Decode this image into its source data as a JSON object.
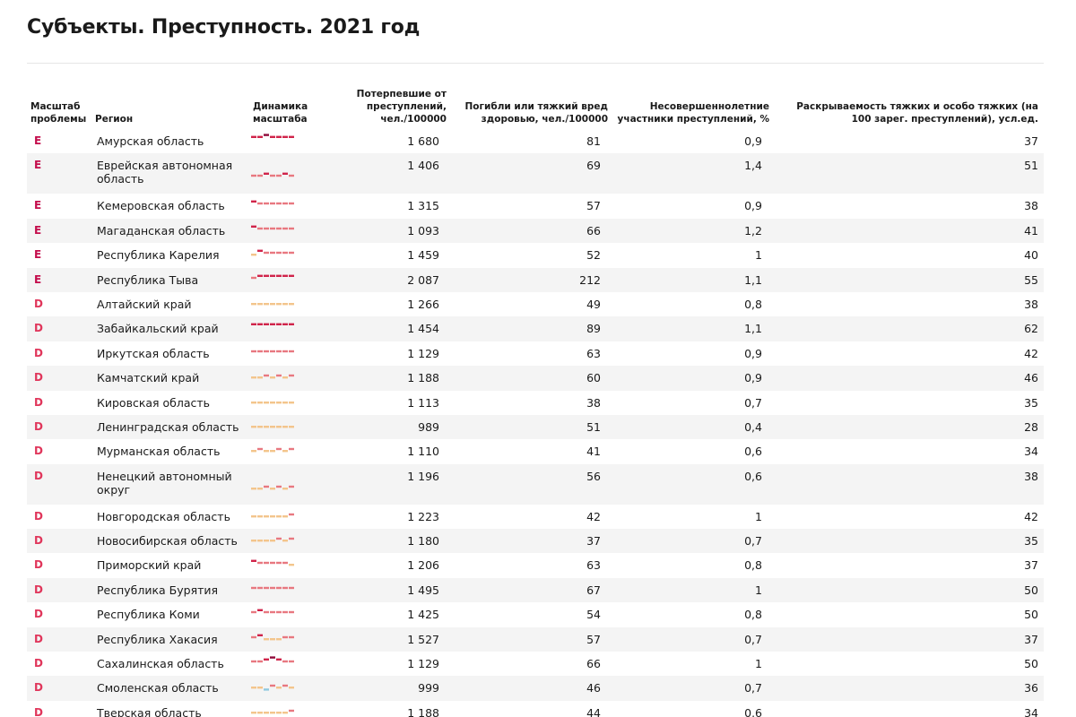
{
  "page": {
    "title": "Субъекты. Преступность. 2021 год"
  },
  "table": {
    "headers": {
      "scale": "Масштаб проблемы",
      "region": "Регион",
      "trend": "Динамика масштаба",
      "victims": "Потерпевшие от преступлений, чел./100000",
      "deaths": "Погибли или тяжкий вред здоровью, чел./100000",
      "minors": "Несовершеннолетние участники преступлений, %",
      "solved": "Раскрываемость тяжких и особо тяжких (на 100 зарег. преступлений), усл.ед."
    },
    "level_colors": {
      "E": "#c40d4c",
      "D": "#e0365b"
    },
    "spark_colors": {
      "4": "#8e0a3a",
      "3": "#d0244a",
      "2": "#e87880",
      "1": "#f3c58c",
      "0": "#8fc9e0"
    },
    "rows": [
      {
        "level": "E",
        "region": "Амурская область",
        "victims": "1 680",
        "deaths": "81",
        "minors": "0,9",
        "solved": "37",
        "trend": [
          3,
          3,
          4,
          3,
          3,
          3,
          3
        ]
      },
      {
        "level": "E",
        "region": "Еврейская автономная область",
        "victims": "1 406",
        "deaths": "69",
        "minors": "1,4",
        "solved": "51",
        "trend": [
          2,
          2,
          3,
          2,
          2,
          3,
          2
        ]
      },
      {
        "level": "E",
        "region": "Кемеровская область",
        "victims": "1 315",
        "deaths": "57",
        "minors": "0,9",
        "solved": "38",
        "trend": [
          3,
          2,
          2,
          2,
          2,
          2,
          2
        ]
      },
      {
        "level": "E",
        "region": "Магаданская область",
        "victims": "1 093",
        "deaths": "66",
        "minors": "1,2",
        "solved": "41",
        "trend": [
          3,
          2,
          2,
          2,
          2,
          2,
          2
        ]
      },
      {
        "level": "E",
        "region": "Республика Карелия",
        "victims": "1 459",
        "deaths": "52",
        "minors": "1",
        "solved": "40",
        "trend": [
          1,
          3,
          2,
          2,
          2,
          2,
          2
        ]
      },
      {
        "level": "E",
        "region": "Республика Тыва",
        "victims": "2 087",
        "deaths": "212",
        "minors": "1,1",
        "solved": "55",
        "trend": [
          2,
          3,
          3,
          3,
          3,
          3,
          3
        ]
      },
      {
        "level": "D",
        "region": "Алтайский край",
        "victims": "1 266",
        "deaths": "49",
        "minors": "0,8",
        "solved": "38",
        "trend": [
          1,
          1,
          1,
          1,
          1,
          1,
          1
        ]
      },
      {
        "level": "D",
        "region": "Забайкальский край",
        "victims": "1 454",
        "deaths": "89",
        "minors": "1,1",
        "solved": "62",
        "trend": [
          3,
          3,
          3,
          3,
          3,
          3,
          3
        ]
      },
      {
        "level": "D",
        "region": "Иркутская область",
        "victims": "1 129",
        "deaths": "63",
        "minors": "0,9",
        "solved": "42",
        "trend": [
          2,
          2,
          2,
          2,
          2,
          2,
          2
        ]
      },
      {
        "level": "D",
        "region": "Камчатский край",
        "victims": "1 188",
        "deaths": "60",
        "minors": "0,9",
        "solved": "46",
        "trend": [
          1,
          1,
          2,
          1,
          2,
          1,
          2
        ]
      },
      {
        "level": "D",
        "region": "Кировская область",
        "victims": "1 113",
        "deaths": "38",
        "minors": "0,7",
        "solved": "35",
        "trend": [
          1,
          1,
          1,
          1,
          1,
          1,
          1
        ]
      },
      {
        "level": "D",
        "region": "Ленинградская область",
        "victims": "989",
        "deaths": "51",
        "minors": "0,4",
        "solved": "28",
        "trend": [
          1,
          1,
          1,
          1,
          1,
          1,
          1
        ]
      },
      {
        "level": "D",
        "region": "Мурманская область",
        "victims": "1 110",
        "deaths": "41",
        "minors": "0,6",
        "solved": "34",
        "trend": [
          1,
          2,
          1,
          1,
          2,
          1,
          2
        ]
      },
      {
        "level": "D",
        "region": "Ненецкий автономный округ",
        "victims": "1 196",
        "deaths": "56",
        "minors": "0,6",
        "solved": "38",
        "trend": [
          1,
          1,
          2,
          1,
          2,
          1,
          2
        ]
      },
      {
        "level": "D",
        "region": "Новгородская область",
        "victims": "1 223",
        "deaths": "42",
        "minors": "1",
        "solved": "42",
        "trend": [
          1,
          1,
          1,
          1,
          1,
          1,
          2
        ]
      },
      {
        "level": "D",
        "region": "Новосибирская область",
        "victims": "1 180",
        "deaths": "37",
        "minors": "0,7",
        "solved": "35",
        "trend": [
          1,
          1,
          1,
          1,
          2,
          1,
          2
        ]
      },
      {
        "level": "D",
        "region": "Приморский край",
        "victims": "1 206",
        "deaths": "63",
        "minors": "0,8",
        "solved": "37",
        "trend": [
          3,
          2,
          2,
          2,
          2,
          2,
          1
        ]
      },
      {
        "level": "D",
        "region": "Республика Бурятия",
        "victims": "1 495",
        "deaths": "67",
        "minors": "1",
        "solved": "50",
        "trend": [
          2,
          2,
          2,
          2,
          2,
          2,
          2
        ]
      },
      {
        "level": "D",
        "region": "Республика Коми",
        "victims": "1 425",
        "deaths": "54",
        "minors": "0,8",
        "solved": "50",
        "trend": [
          2,
          3,
          2,
          2,
          2,
          2,
          2
        ]
      },
      {
        "level": "D",
        "region": "Республика Хакасия",
        "victims": "1 527",
        "deaths": "57",
        "minors": "0,7",
        "solved": "37",
        "trend": [
          2,
          3,
          1,
          1,
          1,
          2,
          2
        ]
      },
      {
        "level": "D",
        "region": "Сахалинская область",
        "victims": "1 129",
        "deaths": "66",
        "minors": "1",
        "solved": "50",
        "trend": [
          2,
          2,
          3,
          4,
          3,
          2,
          2
        ]
      },
      {
        "level": "D",
        "region": "Смоленская область",
        "victims": "999",
        "deaths": "46",
        "minors": "0,7",
        "solved": "36",
        "trend": [
          1,
          1,
          0,
          2,
          1,
          2,
          1
        ]
      },
      {
        "level": "D",
        "region": "Тверская область",
        "victims": "1 188",
        "deaths": "44",
        "minors": "0,6",
        "solved": "34",
        "trend": [
          1,
          1,
          1,
          1,
          1,
          1,
          2
        ]
      }
    ]
  }
}
